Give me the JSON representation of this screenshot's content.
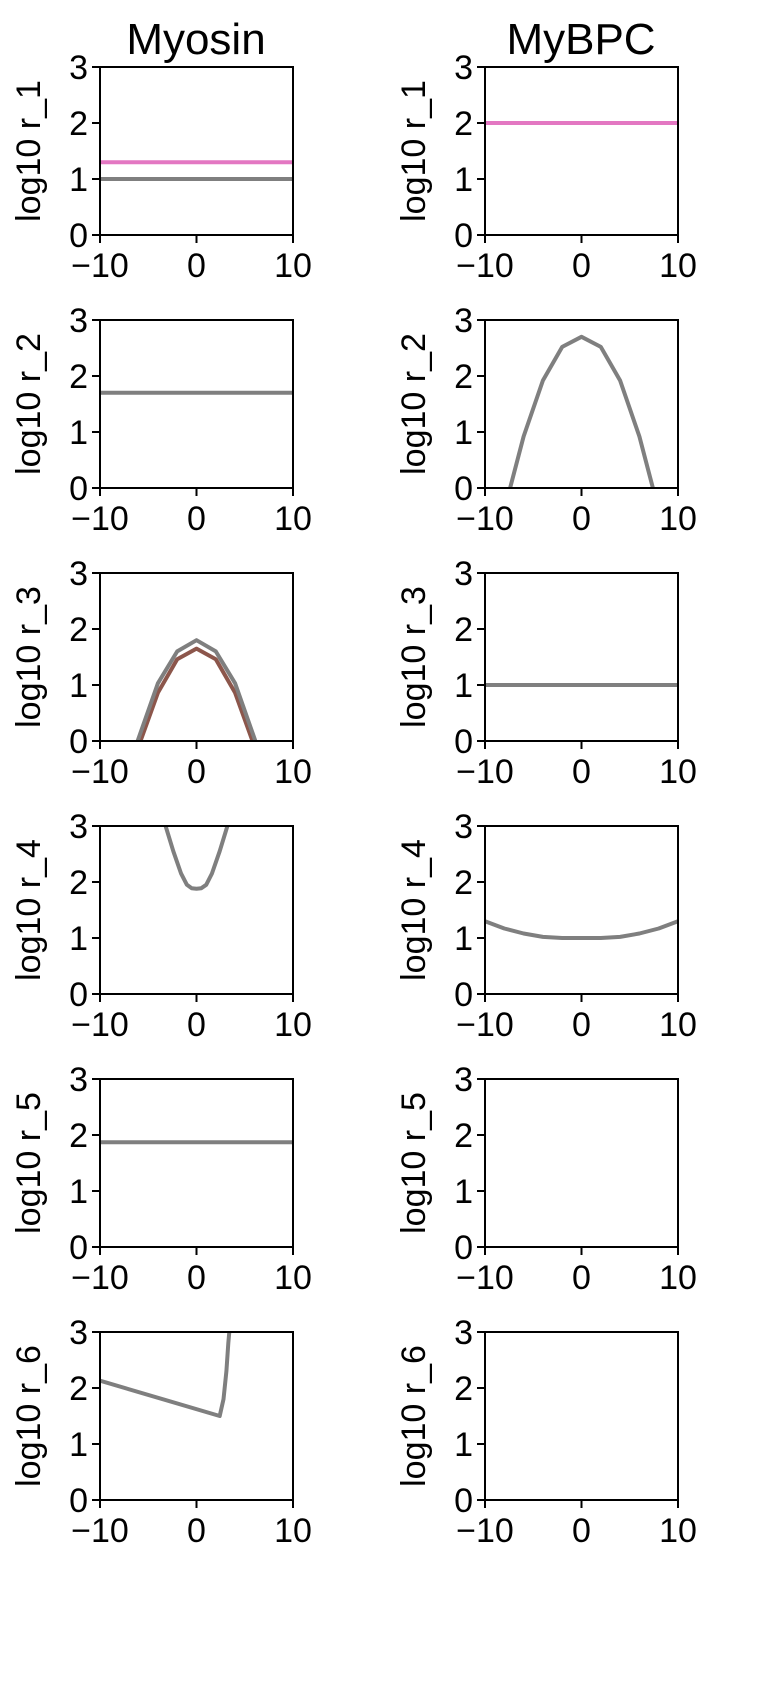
{
  "figure": {
    "columns": [
      "Myosin",
      "MyBPC"
    ]
  },
  "chart_data": [
    {
      "type": "line",
      "column": "Myosin",
      "row": 1,
      "xlabel": "",
      "ylabel": "log10 r_1",
      "xlim": [
        -10,
        10
      ],
      "ylim": [
        0,
        3
      ],
      "x_ticks": [
        "−10",
        "0",
        "10"
      ],
      "y_ticks": [
        "0",
        "1",
        "2",
        "3"
      ],
      "series": [
        {
          "color": "#e377c2",
          "x": [
            -10,
            10
          ],
          "y": [
            1.3,
            1.3
          ]
        },
        {
          "color": "#7f7f7f",
          "x": [
            -10,
            10
          ],
          "y": [
            1.0,
            1.0
          ]
        }
      ]
    },
    {
      "type": "line",
      "column": "MyBPC",
      "row": 1,
      "xlabel": "",
      "ylabel": "log10 r_1",
      "xlim": [
        -10,
        10
      ],
      "ylim": [
        0,
        3
      ],
      "x_ticks": [
        "−10",
        "0",
        "10"
      ],
      "y_ticks": [
        "0",
        "1",
        "2",
        "3"
      ],
      "series": [
        {
          "color": "#e377c2",
          "x": [
            -10,
            10
          ],
          "y": [
            2.0,
            2.0
          ]
        }
      ]
    },
    {
      "type": "line",
      "column": "Myosin",
      "row": 2,
      "xlabel": "",
      "ylabel": "log10 r_2",
      "xlim": [
        -10,
        10
      ],
      "ylim": [
        0,
        3
      ],
      "x_ticks": [
        "−10",
        "0",
        "10"
      ],
      "y_ticks": [
        "0",
        "1",
        "2",
        "3"
      ],
      "series": [
        {
          "color": "#7f7f7f",
          "x": [
            -10,
            10
          ],
          "y": [
            1.7,
            1.7
          ]
        }
      ]
    },
    {
      "type": "line",
      "column": "MyBPC",
      "row": 2,
      "xlabel": "",
      "ylabel": "log10 r_2",
      "xlim": [
        -10,
        10
      ],
      "ylim": [
        0,
        3
      ],
      "x_ticks": [
        "−10",
        "0",
        "10"
      ],
      "y_ticks": [
        "0",
        "1",
        "2",
        "3"
      ],
      "series": [
        {
          "color": "#7f7f7f",
          "x": [
            -7.4,
            -6,
            -4,
            -2,
            0,
            2,
            4,
            6,
            7.4
          ],
          "y": [
            0,
            0.92,
            1.92,
            2.52,
            2.7,
            2.52,
            1.92,
            0.92,
            0
          ]
        }
      ]
    },
    {
      "type": "line",
      "column": "Myosin",
      "row": 3,
      "xlabel": "",
      "ylabel": "log10 r_3",
      "xlim": [
        -10,
        10
      ],
      "ylim": [
        0,
        3
      ],
      "x_ticks": [
        "−10",
        "0",
        "10"
      ],
      "y_ticks": [
        "0",
        "1",
        "2",
        "3"
      ],
      "series": [
        {
          "color": "#8c564b",
          "x": [
            -5.8,
            -4,
            -2,
            0,
            2,
            4,
            5.8
          ],
          "y": [
            0,
            0.86,
            1.46,
            1.65,
            1.46,
            0.86,
            0
          ]
        },
        {
          "color": "#7f7f7f",
          "x": [
            -6.1,
            -4,
            -2,
            0,
            2,
            4,
            6.1
          ],
          "y": [
            0,
            1.03,
            1.6,
            1.8,
            1.6,
            1.03,
            0
          ]
        }
      ]
    },
    {
      "type": "line",
      "column": "MyBPC",
      "row": 3,
      "xlabel": "",
      "ylabel": "log10 r_3",
      "xlim": [
        -10,
        10
      ],
      "ylim": [
        0,
        3
      ],
      "x_ticks": [
        "−10",
        "0",
        "10"
      ],
      "y_ticks": [
        "0",
        "1",
        "2",
        "3"
      ],
      "series": [
        {
          "color": "#7f7f7f",
          "x": [
            -10,
            10
          ],
          "y": [
            1.0,
            1.0
          ]
        }
      ]
    },
    {
      "type": "line",
      "column": "Myosin",
      "row": 4,
      "xlabel": "",
      "ylabel": "log10 r_4",
      "xlim": [
        -10,
        10
      ],
      "ylim": [
        0,
        3
      ],
      "x_ticks": [
        "−10",
        "0",
        "10"
      ],
      "y_ticks": [
        "0",
        "1",
        "2",
        "3"
      ],
      "series": [
        {
          "color": "#7f7f7f",
          "x": [
            -3.2,
            -2.4,
            -1.6,
            -1.0,
            -0.5,
            0,
            0.5,
            1.0,
            1.6,
            2.4,
            3.2
          ],
          "y": [
            3.0,
            2.55,
            2.15,
            1.95,
            1.89,
            1.88,
            1.89,
            1.95,
            2.15,
            2.55,
            3.0
          ]
        }
      ]
    },
    {
      "type": "line",
      "column": "MyBPC",
      "row": 4,
      "xlabel": "",
      "ylabel": "log10 r_4",
      "xlim": [
        -10,
        10
      ],
      "ylim": [
        0,
        3
      ],
      "x_ticks": [
        "−10",
        "0",
        "10"
      ],
      "y_ticks": [
        "0",
        "1",
        "2",
        "3"
      ],
      "series": [
        {
          "color": "#7f7f7f",
          "x": [
            -10,
            -8,
            -6,
            -4,
            -2,
            0,
            2,
            4,
            6,
            8,
            10
          ],
          "y": [
            1.3,
            1.17,
            1.08,
            1.02,
            1.0,
            1.0,
            1.0,
            1.02,
            1.08,
            1.17,
            1.3
          ]
        }
      ]
    },
    {
      "type": "line",
      "column": "Myosin",
      "row": 5,
      "xlabel": "",
      "ylabel": "log10 r_5",
      "xlim": [
        -10,
        10
      ],
      "ylim": [
        0,
        3
      ],
      "x_ticks": [
        "−10",
        "0",
        "10"
      ],
      "y_ticks": [
        "0",
        "1",
        "2",
        "3"
      ],
      "series": [
        {
          "color": "#7f7f7f",
          "x": [
            -10,
            10
          ],
          "y": [
            1.87,
            1.87
          ]
        }
      ]
    },
    {
      "type": "line",
      "column": "MyBPC",
      "row": 5,
      "xlabel": "",
      "ylabel": "log10 r_5",
      "xlim": [
        -10,
        10
      ],
      "ylim": [
        0,
        3
      ],
      "x_ticks": [
        "−10",
        "0",
        "10"
      ],
      "y_ticks": [
        "0",
        "1",
        "2",
        "3"
      ],
      "series": []
    },
    {
      "type": "line",
      "column": "Myosin",
      "row": 6,
      "xlabel": "",
      "ylabel": "log10 r_6",
      "xlim": [
        -10,
        10
      ],
      "ylim": [
        0,
        3
      ],
      "x_ticks": [
        "−10",
        "0",
        "10"
      ],
      "y_ticks": [
        "0",
        "1",
        "2",
        "3"
      ],
      "series": [
        {
          "color": "#7f7f7f",
          "x": [
            -10,
            2.4,
            2.8,
            3.1,
            3.3,
            3.4
          ],
          "y": [
            2.13,
            1.5,
            1.8,
            2.3,
            2.8,
            3.0
          ]
        }
      ]
    },
    {
      "type": "line",
      "column": "MyBPC",
      "row": 6,
      "xlabel": "",
      "ylabel": "log10 r_6",
      "xlim": [
        -10,
        10
      ],
      "ylim": [
        0,
        3
      ],
      "x_ticks": [
        "−10",
        "0",
        "10"
      ],
      "y_ticks": [
        "0",
        "1",
        "2",
        "3"
      ],
      "series": []
    }
  ]
}
